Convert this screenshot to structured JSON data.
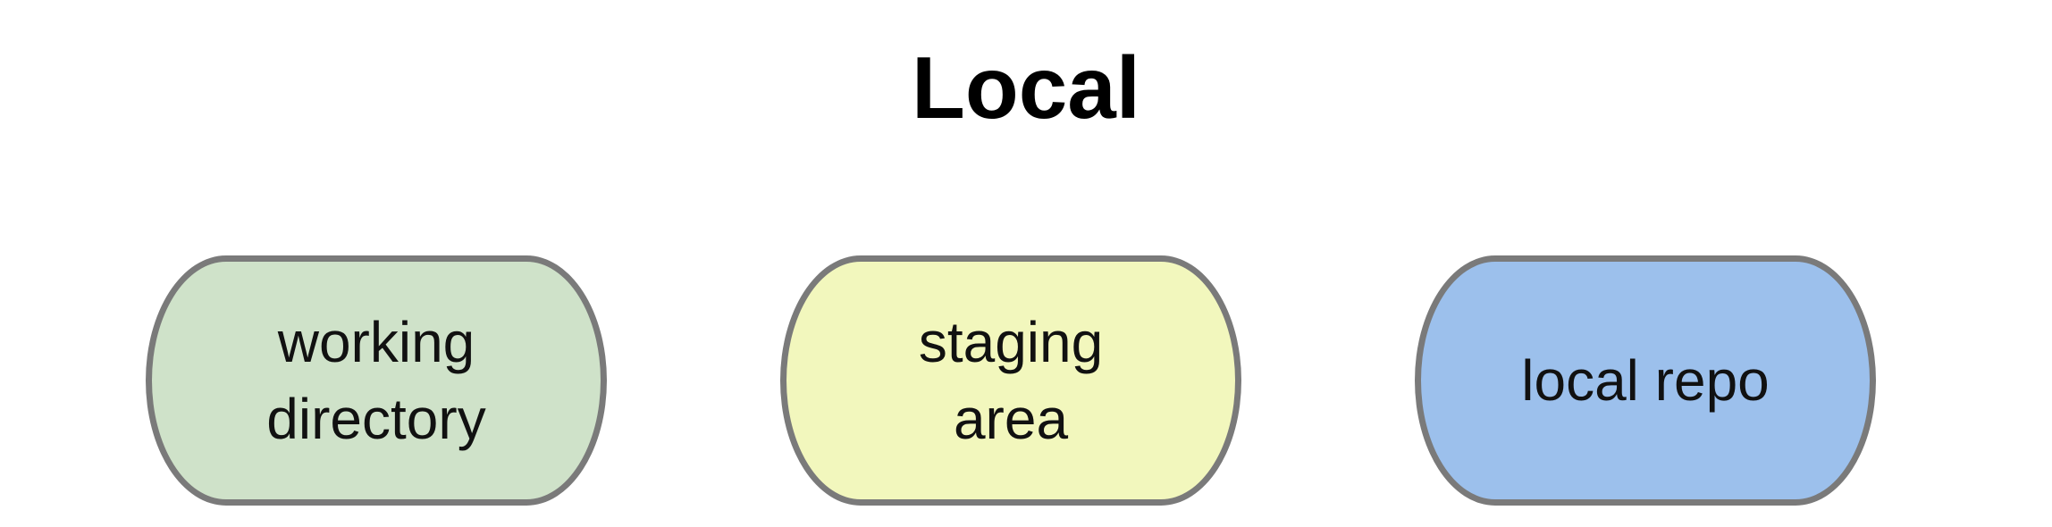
{
  "diagram": {
    "title": "Local",
    "nodes": [
      {
        "label": "working\ndirectory",
        "fill": "#cfe2c9"
      },
      {
        "label": "staging\narea",
        "fill": "#f2f7bd"
      },
      {
        "label": "local repo",
        "fill": "#9cc0ec"
      }
    ],
    "colors": {
      "border": "#7a7a7a",
      "text": "#111111",
      "background": "#ffffff"
    }
  }
}
